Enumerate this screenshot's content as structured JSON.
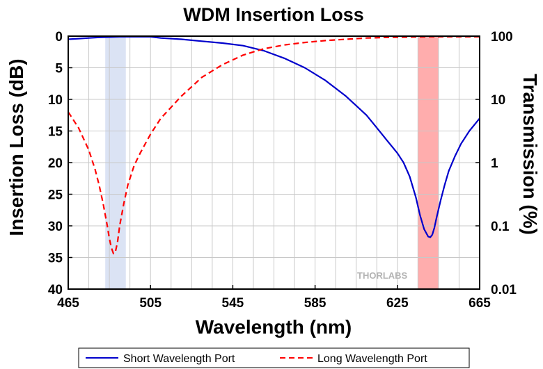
{
  "chart_data": {
    "type": "line",
    "title": "WDM Insertion Loss",
    "xlabel": "Wavelength (nm)",
    "ylabel": "Insertion Loss (dB)",
    "ylabel_right": "Transmission (%)",
    "xlim": [
      465,
      665
    ],
    "ylim": [
      0,
      40
    ],
    "ylim_right": [
      0.01,
      100
    ],
    "y_inverted": true,
    "y_right_scale": "log",
    "x_ticks": [
      465,
      505,
      545,
      585,
      625,
      665
    ],
    "y_ticks": [
      0,
      5,
      10,
      15,
      20,
      25,
      30,
      35,
      40
    ],
    "y_right_ticks": [
      "100",
      "10",
      "1",
      "0.1",
      "0.01"
    ],
    "grid": true,
    "legend_position": "bottom",
    "shaded_bands": [
      {
        "x": [
          483,
          493
        ],
        "color": "#dbe3f4"
      },
      {
        "x": [
          635,
          645
        ],
        "color": "#ffadad"
      }
    ],
    "series": [
      {
        "name": "Short Wavelength Port",
        "color": "#0000cc",
        "style": "solid",
        "x": [
          465,
          470,
          475,
          480,
          485,
          490,
          495,
          500,
          505,
          510,
          520,
          530,
          540,
          550,
          560,
          570,
          580,
          590,
          600,
          610,
          615,
          620,
          625,
          628,
          631,
          634,
          636,
          638,
          640,
          641,
          642,
          643,
          644,
          646,
          648,
          650,
          653,
          656,
          660,
          665
        ],
        "values": [
          0.5,
          0.4,
          0.3,
          0.2,
          0.15,
          0.1,
          0.1,
          0.1,
          0.1,
          0.3,
          0.5,
          0.8,
          1.1,
          1.5,
          2.3,
          3.5,
          5,
          7,
          9.5,
          12.5,
          14.5,
          16.5,
          18.5,
          20,
          22.2,
          25.5,
          28.3,
          30.5,
          31.7,
          31.8,
          31.4,
          30.3,
          28.8,
          26,
          23.5,
          21.3,
          19,
          17,
          15,
          13
        ]
      },
      {
        "name": "Long Wavelength Port",
        "color": "#ff0000",
        "style": "dashed",
        "x": [
          465,
          470,
          475,
          478,
          480,
          482,
          484,
          485,
          486,
          487,
          488,
          489,
          490,
          492,
          494,
          497,
          500,
          505,
          510,
          520,
          530,
          540,
          550,
          560,
          570,
          580,
          590,
          600,
          610,
          620,
          630,
          640,
          650,
          665
        ],
        "values": [
          12,
          14.5,
          18,
          21,
          23.5,
          26.5,
          30,
          32,
          33.5,
          34.4,
          34,
          32.5,
          30,
          26.5,
          23.5,
          20.5,
          18.5,
          15.5,
          13,
          9.5,
          6.5,
          4.5,
          3,
          2,
          1.4,
          1,
          0.7,
          0.5,
          0.3,
          0.2,
          0.15,
          0.1,
          0.1,
          0.1
        ]
      }
    ]
  },
  "watermark": "THORLABS",
  "colors": {
    "grid": "#c8c8c8",
    "axis": "#000000"
  }
}
